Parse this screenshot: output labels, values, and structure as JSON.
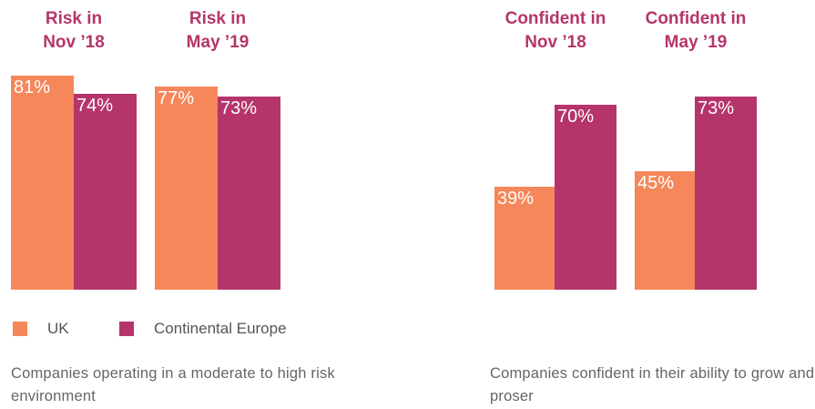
{
  "chart_data": [
    {
      "type": "bar",
      "categories": [
        "Risk in Nov ’18",
        "Risk in May ’19"
      ],
      "series": [
        {
          "name": "UK",
          "color": "#f5875a",
          "values": [
            81,
            77
          ],
          "value_labels": [
            "81%",
            "77%"
          ]
        },
        {
          "name": "Continental Europe",
          "color": "#b5356a",
          "values": [
            74,
            73
          ],
          "value_labels": [
            "74%",
            "73%"
          ]
        }
      ],
      "legend": true,
      "caption": "Companies operating in a moderate to high risk environment"
    },
    {
      "type": "bar",
      "categories": [
        "Confident in Nov ’18",
        "Confident in May ’19"
      ],
      "series": [
        {
          "color": "#f5875a",
          "values": [
            39,
            45
          ],
          "value_labels": [
            "39%",
            "45%"
          ]
        },
        {
          "color": "#b5356a",
          "values": [
            70,
            73
          ],
          "value_labels": [
            "70%",
            "73%"
          ]
        }
      ],
      "legend": false,
      "caption": "Companies confident in their ability to grow and proser"
    }
  ]
}
